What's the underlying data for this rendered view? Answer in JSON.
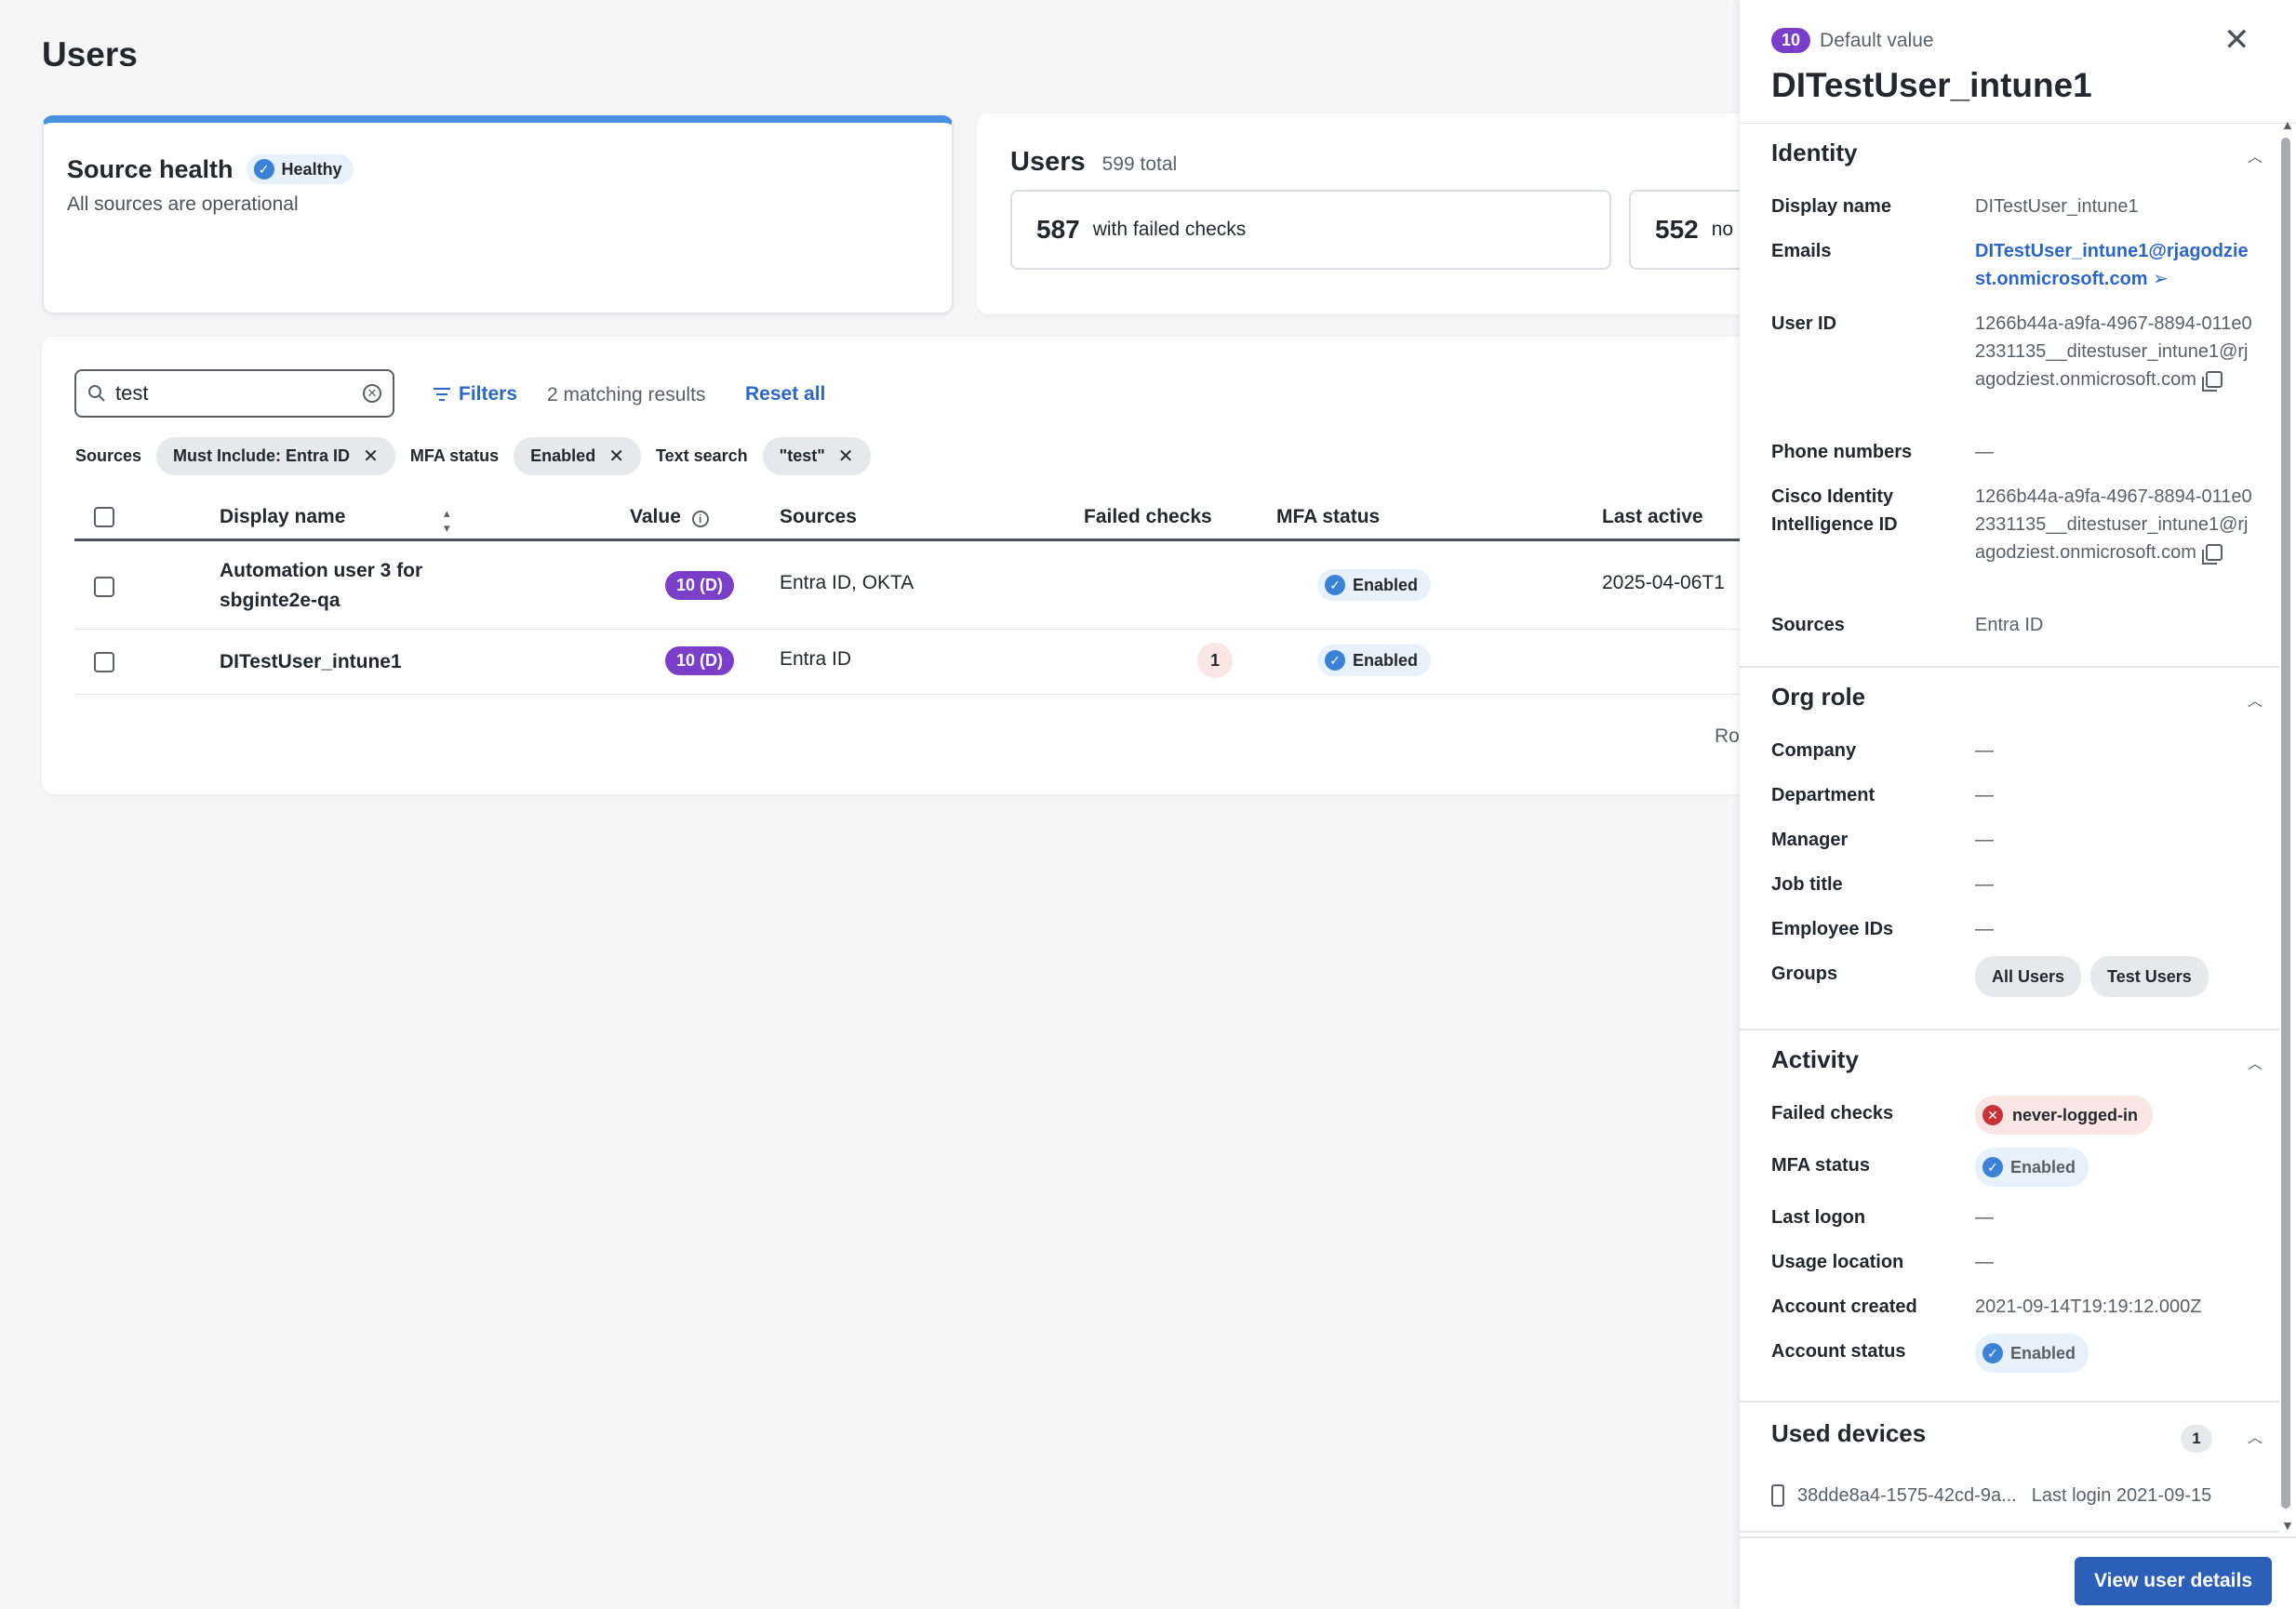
{
  "page": {
    "title": "Users"
  },
  "source_health": {
    "title": "Source health",
    "badge": "Healthy",
    "subtitle": "All sources are operational"
  },
  "users_summary": {
    "title": "Users",
    "total": "599 total",
    "stats": [
      {
        "number": "587",
        "label": "with failed checks"
      },
      {
        "number": "552",
        "label": "no"
      }
    ]
  },
  "toolbar": {
    "search_value": "test",
    "filters_label": "Filters",
    "matching": "2 matching results",
    "reset_label": "Reset all"
  },
  "active_filters": [
    {
      "label": "Sources",
      "value": "Must Include: Entra ID"
    },
    {
      "label": "MFA status",
      "value": "Enabled"
    },
    {
      "label": "Text search",
      "value": "\"test\""
    }
  ],
  "table": {
    "columns": [
      "Display name",
      "Value",
      "Sources",
      "Failed checks",
      "MFA status",
      "Last active"
    ],
    "rows": [
      {
        "name": "Automation user 3 for sbginte2e-qa",
        "value": "10 (D)",
        "sources": "Entra ID, OKTA",
        "failed": "",
        "mfa": "Enabled",
        "last_active": "2025-04-06T1"
      },
      {
        "name": "DITestUser_intune1",
        "value": "10 (D)",
        "sources": "Entra ID",
        "failed": "1",
        "mfa": "Enabled",
        "last_active": ""
      }
    ],
    "footer_partial": "Ro"
  },
  "drawer": {
    "value_num": "10",
    "value_text": "Default value",
    "title": "DITestUser_intune1",
    "identity": {
      "title": "Identity",
      "display_name_label": "Display name",
      "display_name": "DITestUser_intune1",
      "emails_label": "Emails",
      "email": "DITestUser_intune1@rjagodziest.onmicrosoft.com",
      "user_id_label": "User ID",
      "user_id": "1266b44a-a9fa-4967-8894-011e02331135__ditestuser_intune1@rjagodziest.onmicrosoft.com",
      "phone_label": "Phone numbers",
      "phone": "—",
      "cisco_label": "Cisco Identity Intelligence ID",
      "cisco_id": "1266b44a-a9fa-4967-8894-011e02331135__ditestuser_intune1@rjagodziest.onmicrosoft.com",
      "sources_label": "Sources",
      "sources": "Entra ID"
    },
    "org_role": {
      "title": "Org role",
      "company_label": "Company",
      "company": "—",
      "department_label": "Department",
      "department": "—",
      "manager_label": "Manager",
      "manager": "—",
      "job_title_label": "Job title",
      "job_title": "—",
      "employee_ids_label": "Employee IDs",
      "employee_ids": "—",
      "groups_label": "Groups",
      "groups": [
        "All Users",
        "Test Users"
      ]
    },
    "activity": {
      "title": "Activity",
      "failed_checks_label": "Failed checks",
      "failed_check": "never-logged-in",
      "mfa_label": "MFA status",
      "mfa": "Enabled",
      "last_logon_label": "Last logon",
      "last_logon": "—",
      "usage_location_label": "Usage location",
      "usage_location": "—",
      "account_created_label": "Account created",
      "account_created": "2021-09-14T19:19:12.000Z",
      "account_status_label": "Account status",
      "account_status": "Enabled"
    },
    "devices": {
      "title": "Used devices",
      "count": "1",
      "device_id": "38dde8a4-1575-42cd-9a...",
      "last_login": "Last login 2021-09-15"
    },
    "view_button": "View user details"
  }
}
